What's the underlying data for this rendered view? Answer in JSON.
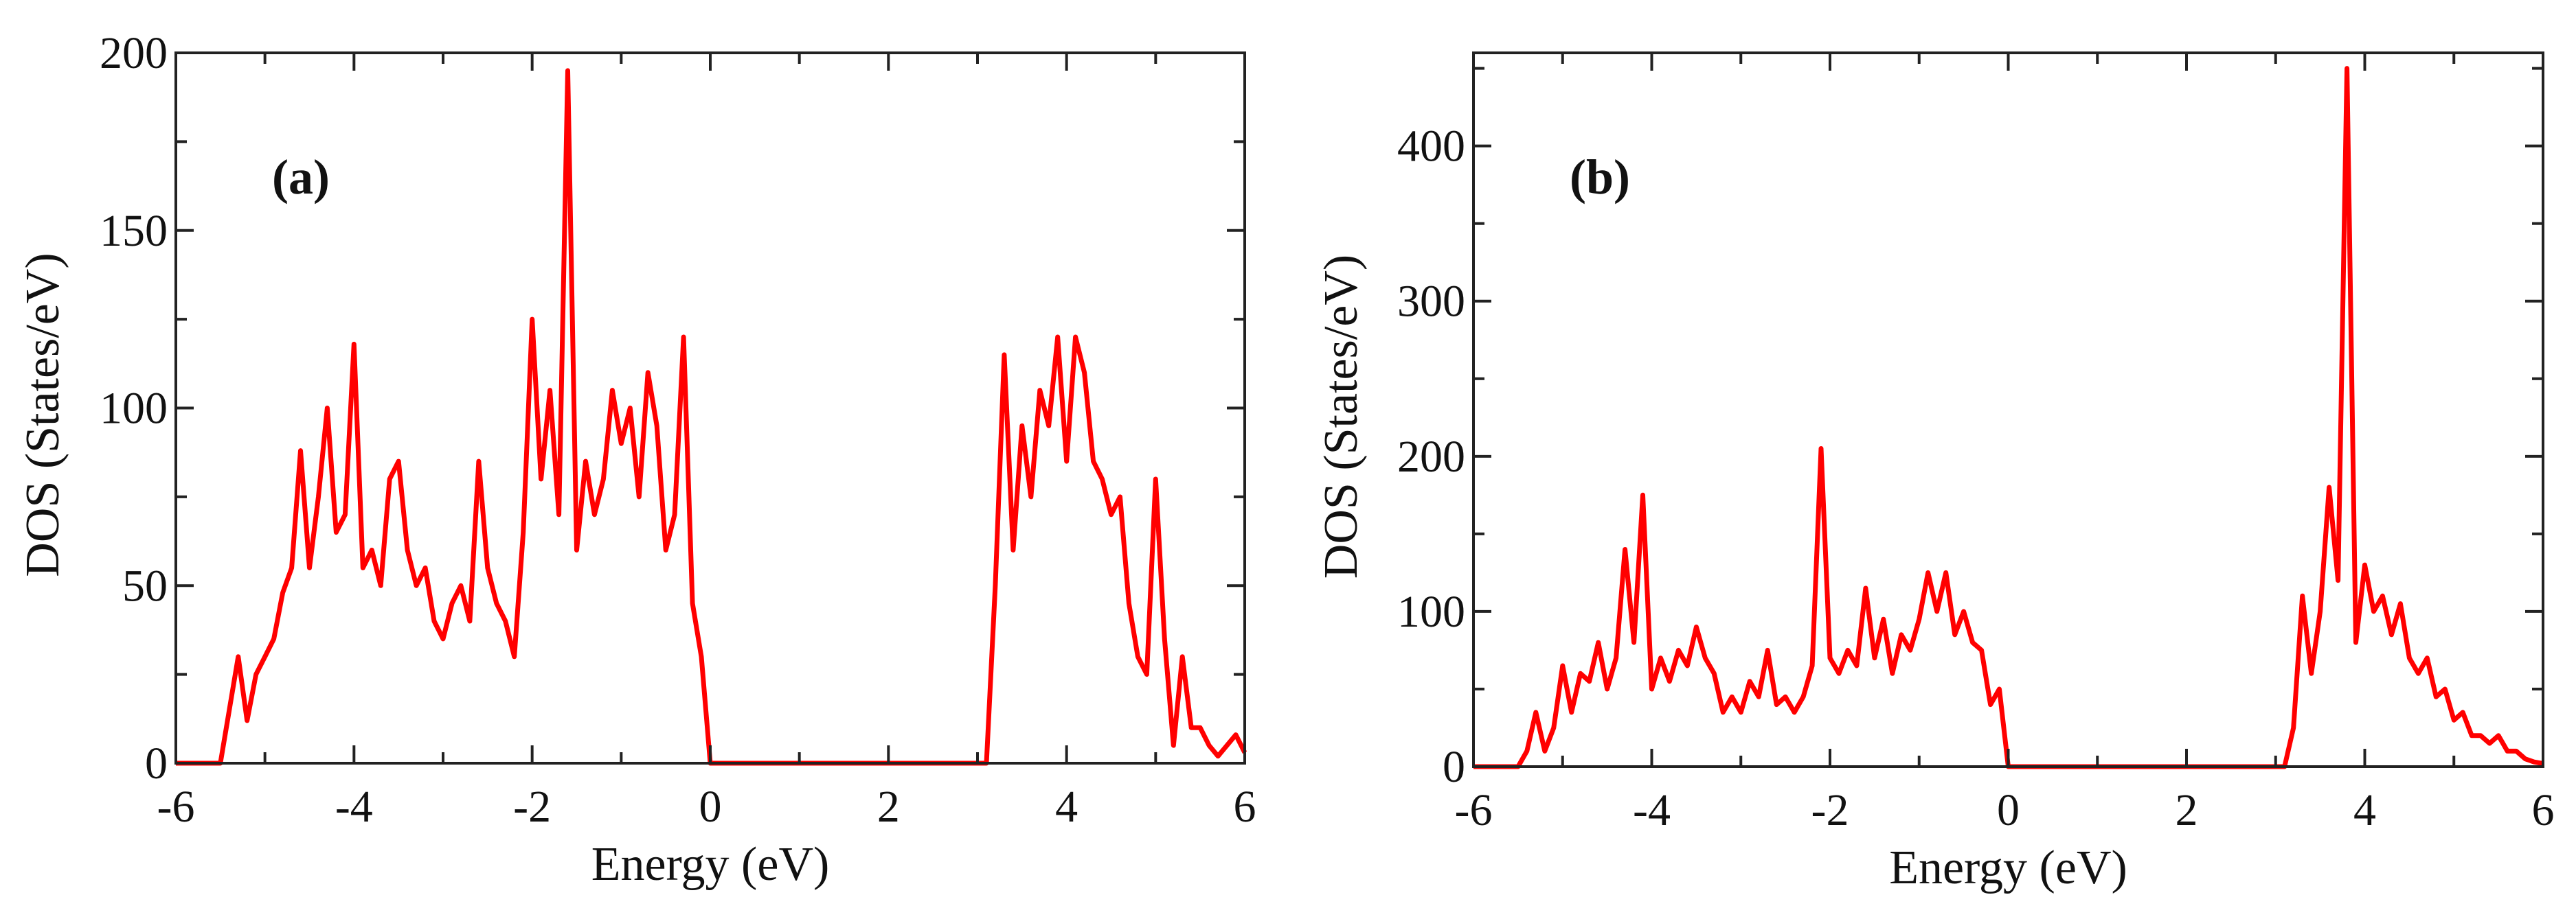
{
  "chart_data": [
    {
      "type": "line",
      "panel_label": "(a)",
      "xlabel": "Energy (eV)",
      "ylabel": "DOS (States/eV)",
      "xlim": [
        -6,
        6
      ],
      "ylim": [
        0,
        200
      ],
      "xticks": [
        -6,
        -4,
        -2,
        0,
        2,
        4,
        6
      ],
      "yticks": [
        0,
        50,
        100,
        150,
        200
      ],
      "x_minor_step": 1,
      "y_minor_step": 25,
      "grid": false,
      "color": "#ff0000",
      "x_start": -6,
      "x_step": 0.1,
      "values": [
        0,
        0,
        0,
        0,
        0,
        0,
        15,
        30,
        12,
        25,
        30,
        35,
        48,
        55,
        88,
        55,
        75,
        100,
        65,
        70,
        118,
        55,
        60,
        50,
        80,
        85,
        60,
        50,
        55,
        40,
        35,
        45,
        50,
        40,
        85,
        55,
        45,
        40,
        30,
        65,
        125,
        80,
        105,
        70,
        195,
        60,
        85,
        70,
        80,
        105,
        90,
        100,
        75,
        110,
        95,
        60,
        70,
        120,
        45,
        30,
        0,
        0,
        0,
        0,
        0,
        0,
        0,
        0,
        0,
        0,
        0,
        0,
        0,
        0,
        0,
        0,
        0,
        0,
        0,
        0,
        0,
        0,
        0,
        0,
        0,
        0,
        0,
        0,
        0,
        0,
        0,
        0,
        50,
        115,
        60,
        95,
        75,
        105,
        95,
        120,
        85,
        120,
        110,
        85,
        80,
        70,
        75,
        45,
        30,
        25,
        80,
        35,
        5,
        30,
        10,
        10,
        5,
        2,
        5,
        8,
        3
      ]
    },
    {
      "type": "line",
      "panel_label": "(b)",
      "xlabel": "Energy (eV)",
      "ylabel": "DOS (States/eV)",
      "xlim": [
        -6,
        6
      ],
      "ylim": [
        0,
        460
      ],
      "xticks": [
        -6,
        -4,
        -2,
        0,
        2,
        4,
        6
      ],
      "yticks": [
        0,
        100,
        200,
        300,
        400
      ],
      "x_minor_step": 1,
      "y_minor_step": 50,
      "grid": false,
      "color": "#ff0000",
      "x_start": -6,
      "x_step": 0.1,
      "values": [
        0,
        0,
        0,
        0,
        0,
        0,
        10,
        35,
        10,
        25,
        65,
        35,
        60,
        55,
        80,
        50,
        70,
        140,
        80,
        175,
        50,
        70,
        55,
        75,
        65,
        90,
        70,
        60,
        35,
        45,
        35,
        55,
        45,
        75,
        40,
        45,
        35,
        45,
        65,
        205,
        70,
        60,
        75,
        65,
        115,
        70,
        95,
        60,
        85,
        75,
        95,
        125,
        100,
        125,
        85,
        100,
        80,
        75,
        40,
        50,
        0,
        0,
        0,
        0,
        0,
        0,
        0,
        0,
        0,
        0,
        0,
        0,
        0,
        0,
        0,
        0,
        0,
        0,
        0,
        0,
        0,
        0,
        0,
        0,
        0,
        0,
        0,
        0,
        0,
        0,
        0,
        0,
        25,
        110,
        60,
        100,
        180,
        120,
        450,
        80,
        130,
        100,
        110,
        85,
        105,
        70,
        60,
        70,
        45,
        50,
        30,
        35,
        20,
        20,
        15,
        20,
        10,
        10,
        5,
        3,
        2
      ]
    }
  ]
}
